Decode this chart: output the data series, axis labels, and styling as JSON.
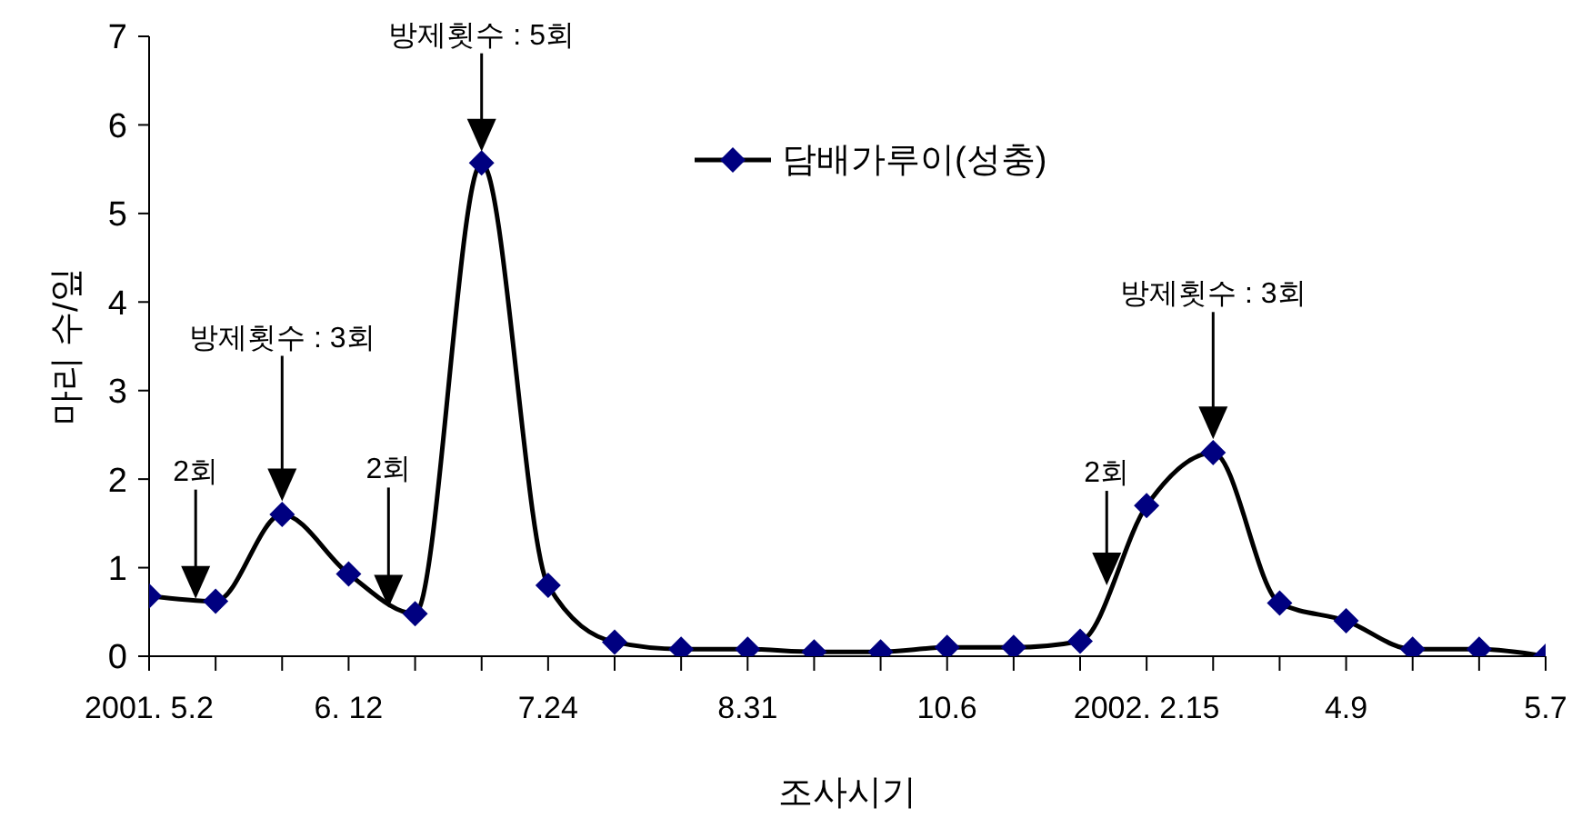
{
  "chart_data": {
    "type": "line",
    "xlabel": "조사시기",
    "ylabel": "마리 수/잎",
    "categories": [
      "2001. 5.2",
      null,
      null,
      "6. 12",
      null,
      null,
      "7.24",
      null,
      null,
      "8.31",
      null,
      null,
      "10.6",
      null,
      null,
      "2002. 2.15",
      null,
      null,
      "4.9",
      null,
      null,
      "5.7"
    ],
    "series": [
      {
        "name": "담배가루이(성충)",
        "color": "#000080",
        "values": [
          0.68,
          0.62,
          1.6,
          0.93,
          0.48,
          5.57,
          0.8,
          0.16,
          0.08,
          0.08,
          0.05,
          0.05,
          0.1,
          0.1,
          0.17,
          1.7,
          2.3,
          0.6,
          0.4,
          0.08,
          0.08,
          0
        ]
      }
    ],
    "ylim": [
      0,
      7
    ],
    "yticks": [
      0,
      1,
      2,
      3,
      4,
      5,
      6,
      7
    ],
    "grid": false,
    "legend": "top right",
    "marker": "diamond",
    "line_style": "solid",
    "annotations": [
      "2회",
      "방제횟수 : 3회",
      "2회",
      "방제횟수 : 5회",
      "2회",
      "방제횟수 : 3회"
    ]
  }
}
